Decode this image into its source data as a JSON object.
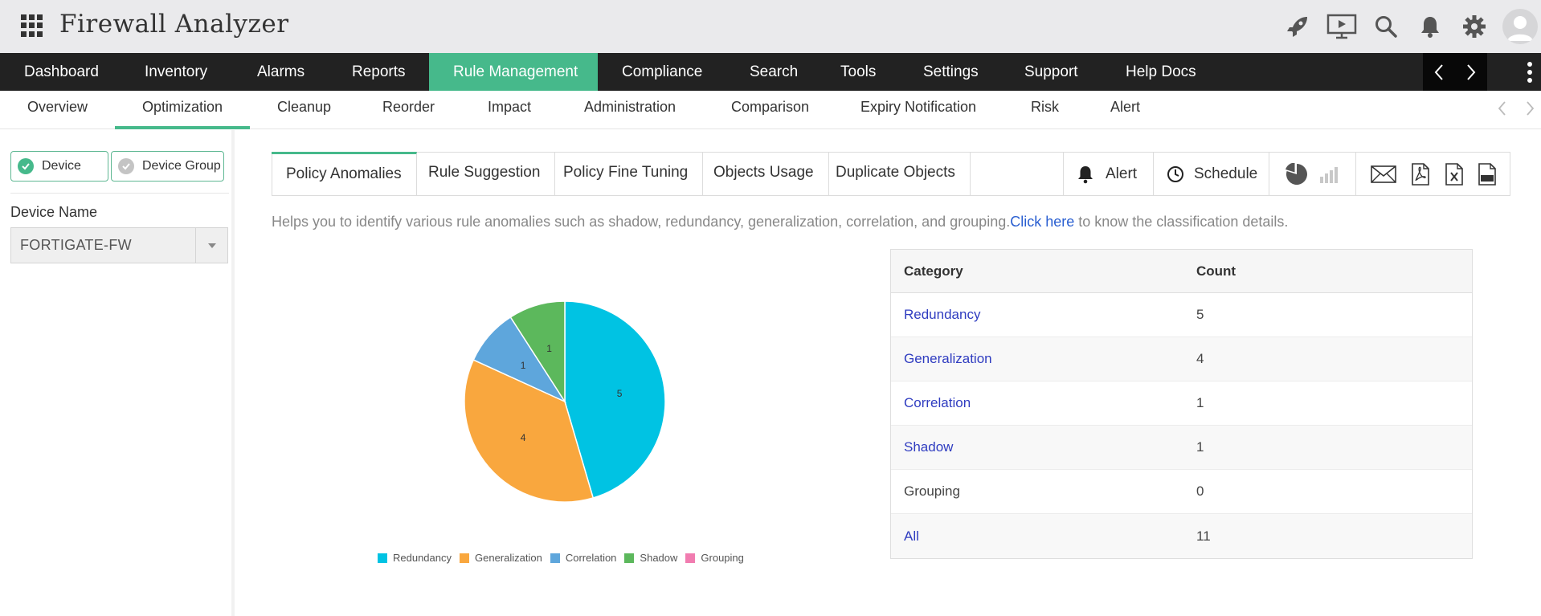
{
  "app": {
    "title": "Firewall Analyzer"
  },
  "header_icons": [
    "rocket-icon",
    "presentation-icon",
    "search-icon",
    "bell-icon",
    "gear-icon",
    "user-avatar"
  ],
  "main_nav": {
    "items": [
      "Dashboard",
      "Inventory",
      "Alarms",
      "Reports",
      "Rule Management",
      "Compliance",
      "Search",
      "Tools",
      "Settings",
      "Support",
      "Help Docs"
    ],
    "active": "Rule Management"
  },
  "sub_nav": {
    "items": [
      "Overview",
      "Optimization",
      "Cleanup",
      "Reorder",
      "Impact",
      "Administration",
      "Comparison",
      "Expiry Notification",
      "Risk",
      "Alert"
    ],
    "active": "Optimization"
  },
  "left_panel": {
    "device_btn": "Device",
    "device_group_btn": "Device Group",
    "device_name_label": "Device Name",
    "device_selected": "FORTIGATE-FW"
  },
  "content_tabs": {
    "items": [
      "Policy Anomalies",
      "Rule Suggestion",
      "Policy Fine Tuning",
      "Objects Usage",
      "Duplicate Objects"
    ],
    "active": "Policy Anomalies",
    "alert_label": "Alert",
    "schedule_label": "Schedule"
  },
  "description": {
    "text": "Helps you to identify various rule anomalies such as shadow, redundancy, generalization, correlation, and grouping.",
    "link": "Click here",
    "suffix": " to know the classification details."
  },
  "colors": {
    "accent": "#46b98b",
    "redundancy": "#00c3e3",
    "generalization": "#f9a73e",
    "correlation": "#5ea6dc",
    "shadow": "#5cb85c",
    "grouping": "#f17cb0"
  },
  "chart_data": {
    "type": "pie",
    "categories": [
      "Redundancy",
      "Generalization",
      "Correlation",
      "Shadow",
      "Grouping"
    ],
    "values": [
      5,
      4,
      1,
      1,
      0
    ],
    "colors": [
      "#00c3e3",
      "#f9a73e",
      "#5ea6dc",
      "#5cb85c",
      "#f17cb0"
    ],
    "data_labels": true,
    "legend": "bottom"
  },
  "table": {
    "headers": [
      "Category",
      "Count"
    ],
    "rows": [
      {
        "category": "Redundancy",
        "count": "5",
        "link": true
      },
      {
        "category": "Generalization",
        "count": "4",
        "link": true
      },
      {
        "category": "Correlation",
        "count": "1",
        "link": true
      },
      {
        "category": "Shadow",
        "count": "1",
        "link": true
      },
      {
        "category": "Grouping",
        "count": "0",
        "link": false
      },
      {
        "category": "All",
        "count": "11",
        "link": true
      }
    ]
  }
}
